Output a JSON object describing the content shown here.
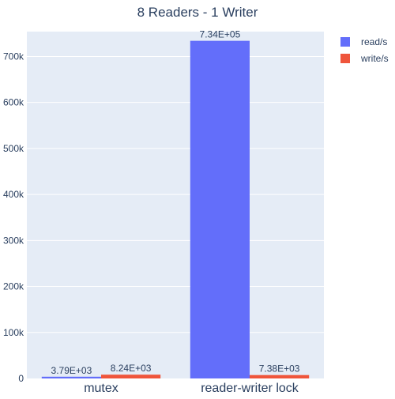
{
  "chart_data": {
    "type": "bar",
    "title": "8 Readers - 1 Writer",
    "categories": [
      "mutex",
      "reader-writer lock"
    ],
    "series": [
      {
        "name": "read/s",
        "values": [
          3790,
          734000
        ],
        "labels": [
          "3.79E+03",
          "7.34E+05"
        ],
        "color": "#636efa"
      },
      {
        "name": "write/s",
        "values": [
          8240,
          7380
        ],
        "labels": [
          "8.24E+03",
          "7.38E+03"
        ],
        "color": "#ef553b"
      }
    ],
    "ylim": [
      0,
      754000
    ],
    "yticks": [
      0,
      100000,
      200000,
      300000,
      400000,
      500000,
      600000,
      700000
    ],
    "ytick_labels": [
      "0",
      "100k",
      "200k",
      "300k",
      "400k",
      "500k",
      "600k",
      "700k"
    ],
    "xlabel": "",
    "ylabel": "",
    "grid": true,
    "legend_position": "top-right",
    "plot_bgcolor": "#e5ecf6",
    "grid_color": "#ffffff",
    "text_color": "#2a3f5f"
  }
}
